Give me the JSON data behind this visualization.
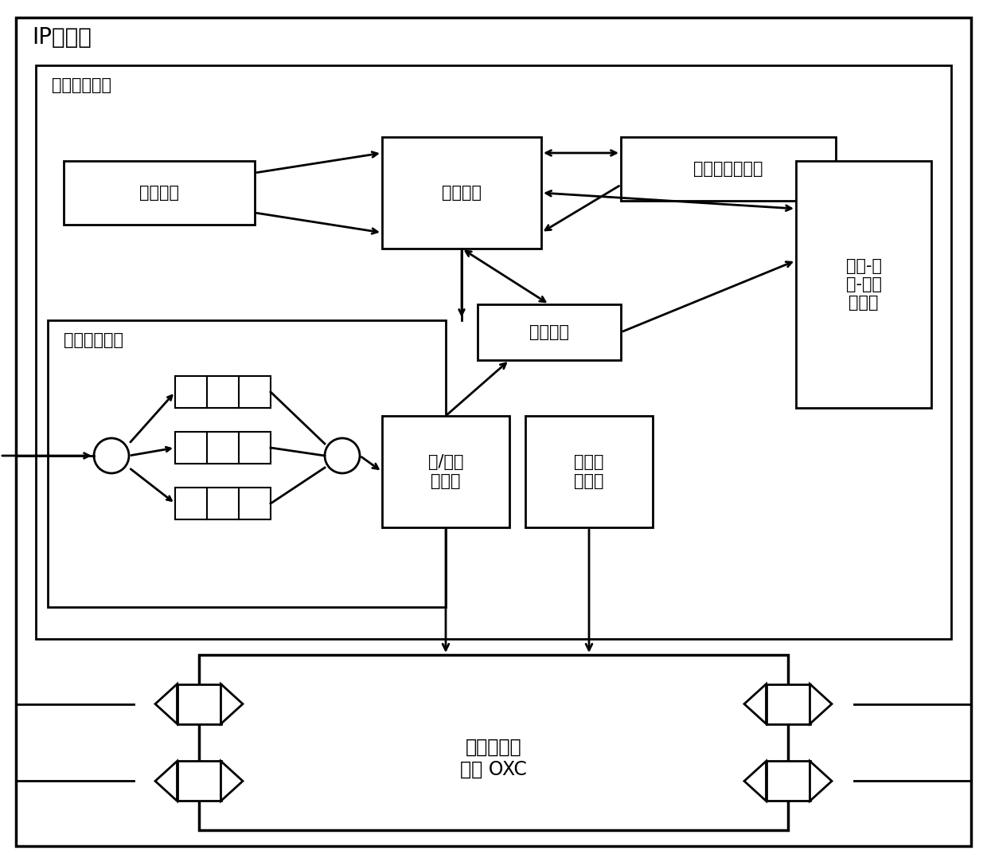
{
  "bg_color": "#ffffff",
  "lc": "#000000",
  "lw": 2.0,
  "lw_thick": 2.5,
  "lw_thin": 1.5,
  "fs_title": 20,
  "fs_label": 15,
  "fs_large": 17,
  "labels": {
    "ip": "IP交换机",
    "optical": "光流交换模块",
    "src_route": "源路由表",
    "scheduler": "调度模块",
    "ctrl_pkt": "控制包收发模块",
    "voq": "虚拟输出队列",
    "clock": "时钟模块",
    "link_table": "链路-波\n长-时间\n资源表",
    "eo": "电/光转\n换模块",
    "sw_ctrl": "交换控\n制模块",
    "oxc": "光交叉连接\n模块 OXC"
  }
}
